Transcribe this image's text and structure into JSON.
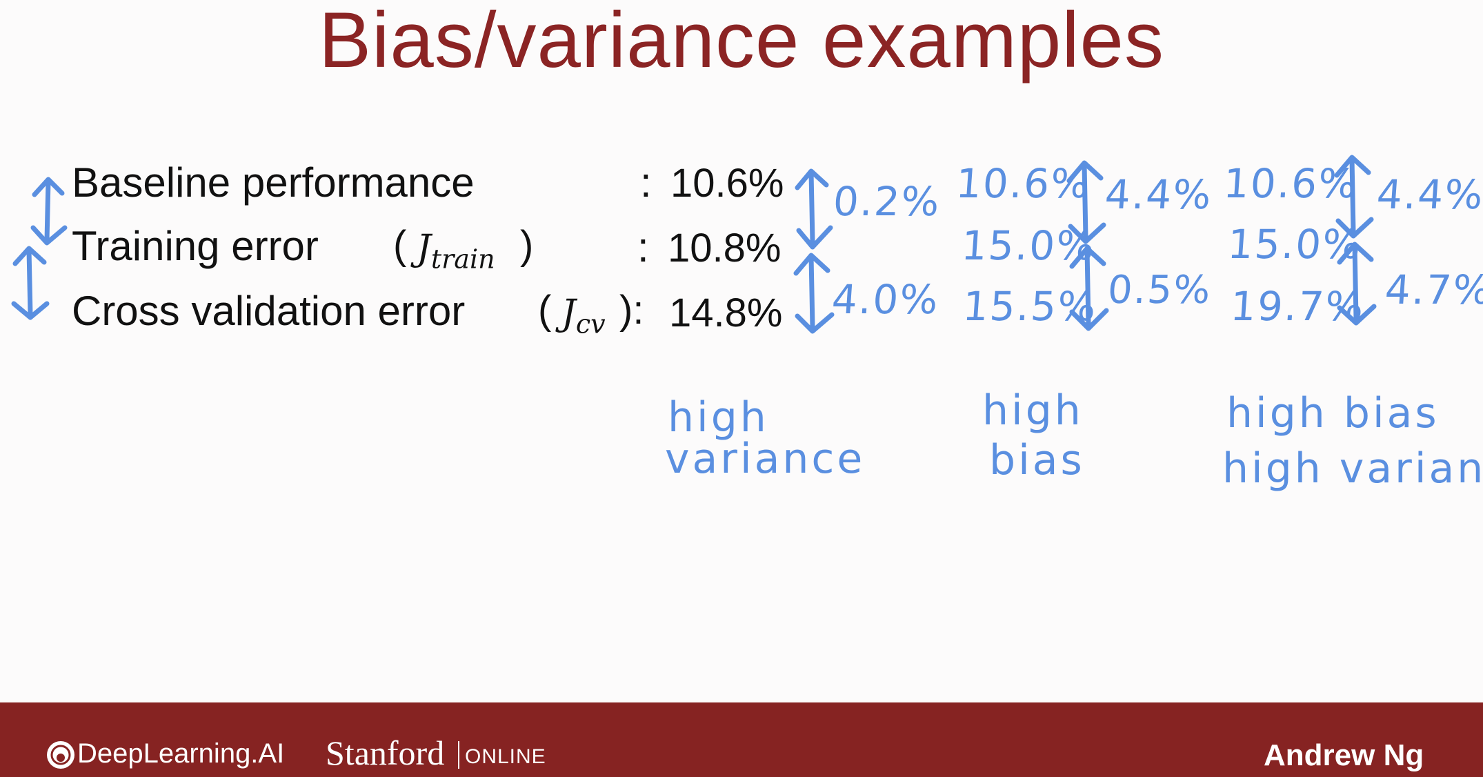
{
  "slide": {
    "title": "Bias/variance examples",
    "rows": {
      "baseline": {
        "label": "Baseline performance",
        "colon": ":",
        "value": "10.6%"
      },
      "training": {
        "label": "Training error",
        "paren_open": "(",
        "symbol": "J",
        "subscript": "train",
        "paren_close": ")",
        "colon": ":",
        "value": "10.8%"
      },
      "cv": {
        "label": "Cross validation error",
        "paren_open": "(",
        "symbol": "J",
        "subscript": "cv",
        "paren_close": "):",
        "value": "14.8%"
      }
    },
    "annotations": {
      "col1": {
        "gap_top": "0.2%",
        "gap_bottom": "4.0%",
        "label_line1": "high",
        "label_line2": "variance"
      },
      "col2": {
        "baseline": "10.6%",
        "training": "15.0%",
        "cv": "15.5%",
        "gap_top": "4.4%",
        "gap_bottom": "0.5%",
        "label_line1": "high",
        "label_line2": "bias"
      },
      "col3": {
        "baseline": "10.6%",
        "training": "15.0%",
        "cv": "19.7%",
        "gap_top": "4.4%",
        "gap_bottom": "4.7%",
        "label_line1": "high bias",
        "label_line2": "high variance"
      }
    }
  },
  "footer": {
    "brand": "DeepLearning.AI",
    "university": "Stanford",
    "university_suffix": "ONLINE",
    "author": "Andrew Ng",
    "background_color": "#862322"
  },
  "colors": {
    "title": "#8b2424",
    "handwriting": "#5a8fe0",
    "text": "#111111"
  },
  "icons": [
    "double-arrow-icon",
    "deeplearning-logo-icon"
  ]
}
